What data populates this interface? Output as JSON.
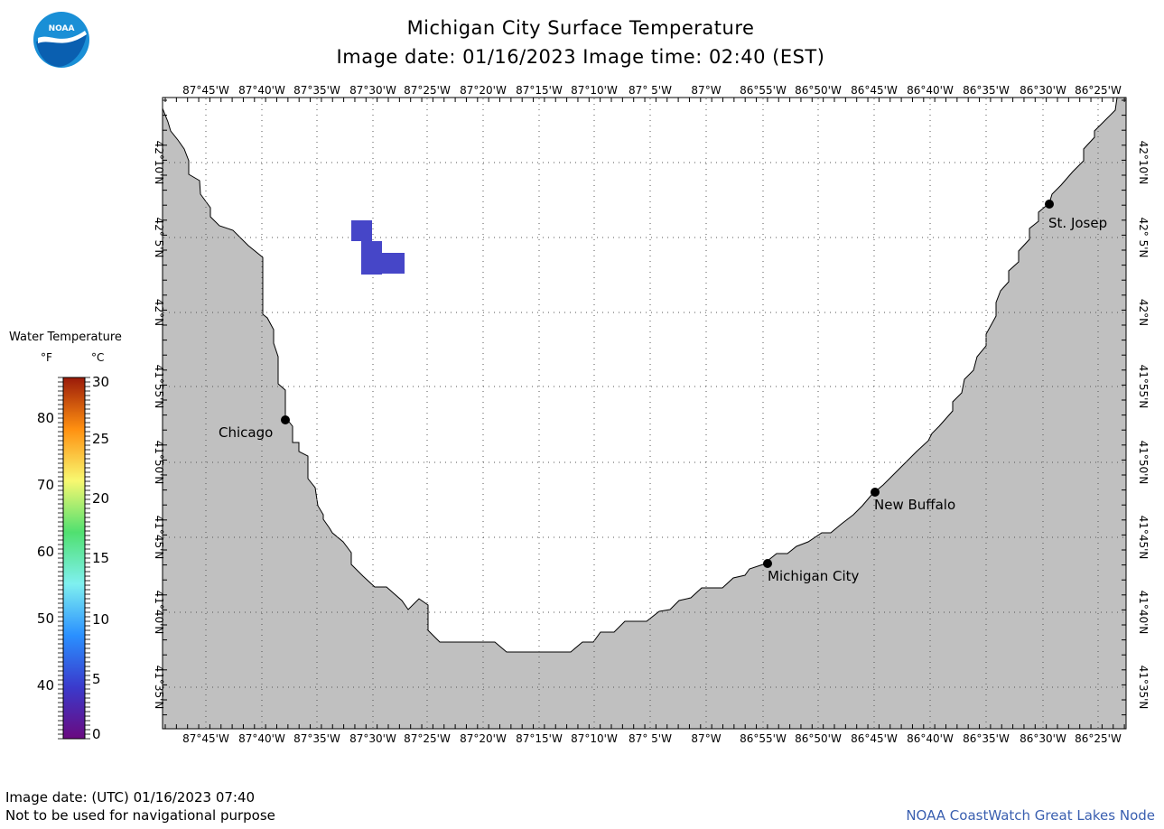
{
  "header": {
    "title": "Michigan City Surface Temperature",
    "subtitle": "Image date: 01/16/2023     Image time: 02:40 (EST)"
  },
  "logo": {
    "text": "NOAA",
    "icon": "noaa-logo-icon"
  },
  "map": {
    "lon_labels": [
      "87°45'W",
      "87°40'W",
      "87°35'W",
      "87°30'W",
      "87°25'W",
      "87°20'W",
      "87°15'W",
      "87°10'W",
      "87° 5'W",
      "87°W",
      "86°55'W",
      "86°50'W",
      "86°45'W",
      "86°40'W",
      "86°35'W",
      "86°30'W",
      "86°25'W"
    ],
    "lat_labels": [
      "42°10'N",
      "42° 5'N",
      "42°N",
      "41°55'N",
      "41°50'N",
      "41°45'N",
      "41°40'N",
      "41°35'N"
    ],
    "cities": [
      {
        "name": "Chicago",
        "key": "chicago"
      },
      {
        "name": "St. Josep",
        "key": "st-josep"
      },
      {
        "name": "New Buffalo",
        "key": "new-buffalo"
      },
      {
        "name": "Michigan City",
        "key": "michigan-city"
      }
    ],
    "land_color": "#c0c0c0",
    "water_color": "#ffffff",
    "cold_pixel_color": "#4646c8"
  },
  "legend": {
    "title": "Water Temperature",
    "unit_f": "°F",
    "unit_c": "°C",
    "f_ticks": [
      "80",
      "70",
      "60",
      "50",
      "40"
    ],
    "c_ticks": [
      "30",
      "25",
      "20",
      "15",
      "10",
      "5",
      "0"
    ],
    "range_c": [
      0,
      30
    ],
    "colors": [
      "#6a0a80",
      "#3a3acc",
      "#2a90ff",
      "#7ff0f0",
      "#50e070",
      "#f8f870",
      "#ff9010",
      "#9a1a0a"
    ]
  },
  "footer": {
    "utc": "Image date: (UTC) 01/16/2023  07:40",
    "disclaimer": "Not to be used for navigational purpose",
    "credit": "NOAA CoastWatch Great Lakes Node"
  }
}
